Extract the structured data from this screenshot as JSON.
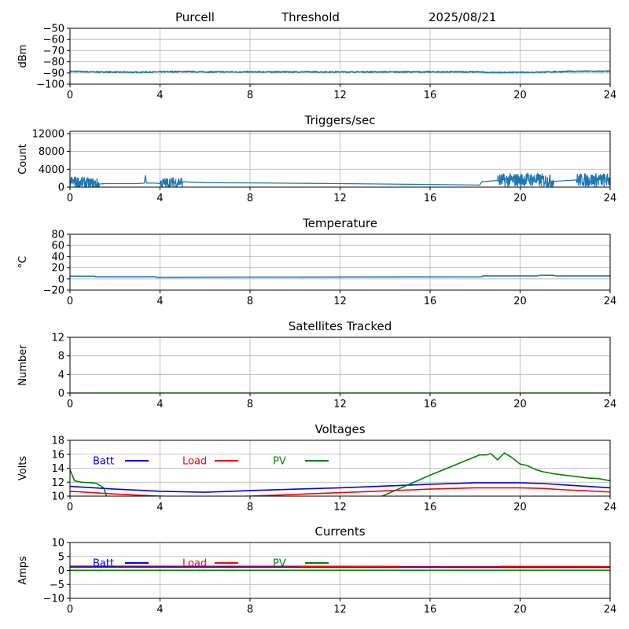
{
  "header": {
    "station": "Purcell",
    "mode": "Threshold",
    "date": "2025/08/21"
  },
  "colors": {
    "series": "#1f77b4",
    "batt": "#0000ff",
    "load": "#ff0000",
    "pv": "#008000",
    "grid": "#b0b0b0"
  },
  "chart_data": [
    {
      "type": "line",
      "title": "",
      "ylabel": "dBm",
      "xlim": [
        0,
        24
      ],
      "ylim": [
        -100,
        -50
      ],
      "xticks": [
        0,
        4,
        8,
        12,
        16,
        20,
        24
      ],
      "yticks": [
        -100,
        -90,
        -80,
        -70,
        -60,
        -50
      ],
      "ytick_labels": [
        "−100",
        "−90",
        "−80",
        "−70",
        "−60",
        "−50"
      ],
      "grid": true,
      "series": [
        {
          "color": "#1f77b4",
          "noise": 0.6,
          "x": [
            0,
            1,
            3,
            4,
            5,
            6,
            12,
            18.2,
            18.5,
            20,
            22.5,
            24
          ],
          "y": [
            -88.5,
            -89,
            -89.3,
            -89,
            -88.7,
            -89,
            -89,
            -89,
            -89.5,
            -89.5,
            -88.5,
            -88.5
          ]
        }
      ]
    },
    {
      "type": "line",
      "title": "Triggers/sec",
      "ylabel": "Count",
      "xlim": [
        0,
        24
      ],
      "ylim": [
        0,
        12500
      ],
      "xticks": [
        0,
        4,
        8,
        12,
        16,
        20,
        24
      ],
      "yticks": [
        0,
        4000,
        8000,
        12000
      ],
      "ytick_labels": [
        "0",
        "4000",
        "8000",
        "12000"
      ],
      "grid": true,
      "series": [
        {
          "color": "#1f77b4",
          "noise": 0,
          "x": [
            0,
            1.3,
            1.6,
            3,
            3.3,
            3.35,
            3.4,
            3.8,
            4,
            5,
            6,
            8,
            12,
            16,
            18.2,
            18.3,
            19,
            20,
            20.3,
            21.5,
            22.5,
            24
          ],
          "y": [
            1300,
            700,
            800,
            800,
            900,
            2600,
            900,
            900,
            800,
            1200,
            1000,
            950,
            800,
            600,
            450,
            1200,
            1500,
            1600,
            1800,
            1300,
            1600,
            1600
          ],
          "jitter": [
            {
              "from": 0,
              "to": 1.3,
              "amp": 1200
            },
            {
              "from": 4,
              "to": 5,
              "amp": 1200
            },
            {
              "from": 19,
              "to": 21.5,
              "amp": 1500
            },
            {
              "from": 22.5,
              "to": 24,
              "amp": 1500
            }
          ]
        }
      ]
    },
    {
      "type": "line",
      "title": "Temperature",
      "ylabel": "°C",
      "xlim": [
        0,
        24
      ],
      "ylim": [
        -20,
        80
      ],
      "xticks": [
        0,
        4,
        8,
        12,
        16,
        20,
        24
      ],
      "yticks": [
        -20,
        0,
        20,
        40,
        60,
        80
      ],
      "ytick_labels": [
        "−20",
        "0",
        "20",
        "40",
        "60",
        "80"
      ],
      "grid": true,
      "series": [
        {
          "color": "#1f77b4",
          "noise": 0,
          "x": [
            0,
            1.1,
            1.15,
            3.8,
            3.85,
            12,
            18.3,
            18.35,
            20.8,
            20.85,
            21.5,
            21.55,
            24
          ],
          "y": [
            5,
            5,
            4,
            4,
            3,
            3.5,
            4,
            5.5,
            5.5,
            6.5,
            6.5,
            5.5,
            5.5
          ]
        }
      ]
    },
    {
      "type": "line",
      "title": "Satellites Tracked",
      "ylabel": "Number",
      "xlim": [
        0,
        24
      ],
      "ylim": [
        0,
        12
      ],
      "xticks": [
        0,
        4,
        8,
        12,
        16,
        20,
        24
      ],
      "yticks": [
        0,
        4,
        8,
        12
      ],
      "ytick_labels": [
        "0",
        "4",
        "8",
        "12"
      ],
      "grid": true,
      "series": [
        {
          "color": "#008000",
          "noise": 0,
          "x": [
            0,
            24
          ],
          "y": [
            0,
            0
          ]
        }
      ]
    },
    {
      "type": "line",
      "title": "Voltages",
      "ylabel": "Volts",
      "xlim": [
        0,
        24
      ],
      "ylim": [
        10,
        18
      ],
      "xticks": [
        0,
        4,
        8,
        12,
        16,
        20,
        24
      ],
      "yticks": [
        10,
        12,
        14,
        16,
        18
      ],
      "ytick_labels": [
        "10",
        "12",
        "14",
        "16",
        "18"
      ],
      "grid": true,
      "legend": [
        {
          "label": "Batt",
          "color": "#0000ff"
        },
        {
          "label": "Load",
          "color": "#ff0000"
        },
        {
          "label": "PV",
          "color": "#008000"
        }
      ],
      "series": [
        {
          "name": "Batt",
          "color": "#0000ff",
          "noise": 0,
          "x": [
            0,
            2,
            4,
            6,
            8,
            12,
            16,
            18,
            19,
            20,
            21,
            22,
            24
          ],
          "y": [
            11.4,
            11,
            10.7,
            10.55,
            10.8,
            11.2,
            11.7,
            11.9,
            11.9,
            11.9,
            11.8,
            11.6,
            11.2
          ]
        },
        {
          "name": "Load",
          "color": "#ff0000",
          "noise": 0,
          "x": [
            0,
            1,
            2,
            3,
            4,
            6,
            8,
            12,
            16,
            18,
            19,
            20,
            21,
            22,
            24
          ],
          "y": [
            10.7,
            10.5,
            10.3,
            10.15,
            10,
            9.8,
            10,
            10.5,
            11,
            11.2,
            11.2,
            11.2,
            11.1,
            10.9,
            10.6
          ]
        },
        {
          "name": "PV",
          "color": "#008000",
          "noise": 0,
          "x": [
            0,
            0.2,
            0.5,
            1,
            1.2,
            1.5,
            1.6,
            1.62,
            13.8,
            16,
            18.2,
            18.5,
            18.7,
            19,
            19.3,
            19.6,
            20,
            20.3,
            20.7,
            21,
            21.5,
            22,
            22.5,
            23,
            23.5,
            24
          ],
          "y": [
            13.8,
            12.2,
            12,
            11.9,
            11.8,
            11.2,
            10.2,
            9.9,
            9.9,
            13,
            15.9,
            15.9,
            16.1,
            15.2,
            16.2,
            15.6,
            14.6,
            14.4,
            13.8,
            13.5,
            13.2,
            13,
            12.8,
            12.6,
            12.5,
            12.2
          ]
        }
      ]
    },
    {
      "type": "line",
      "title": "Currents",
      "ylabel": "Amps",
      "xlim": [
        0,
        24
      ],
      "ylim": [
        -10,
        10
      ],
      "xticks": [
        0,
        4,
        8,
        12,
        16,
        20,
        24
      ],
      "yticks": [
        -10,
        -5,
        0,
        5,
        10
      ],
      "ytick_labels": [
        "−10",
        "−5",
        "0",
        "5",
        "10"
      ],
      "grid": true,
      "legend": [
        {
          "label": "Batt",
          "color": "#0000ff"
        },
        {
          "label": "Load",
          "color": "#ff0000"
        },
        {
          "label": "PV",
          "color": "#008000"
        }
      ],
      "series": [
        {
          "name": "Load",
          "color": "#ff0000",
          "noise": 0,
          "x": [
            0,
            24
          ],
          "y": [
            1.5,
            1.4
          ]
        },
        {
          "name": "Batt",
          "color": "#0000ff",
          "noise": 0,
          "x": [
            0,
            24
          ],
          "y": [
            1.2,
            1.1
          ]
        },
        {
          "name": "PV",
          "color": "#008000",
          "noise": 0,
          "x": [
            0,
            24
          ],
          "y": [
            0.05,
            0.05
          ]
        }
      ]
    }
  ]
}
